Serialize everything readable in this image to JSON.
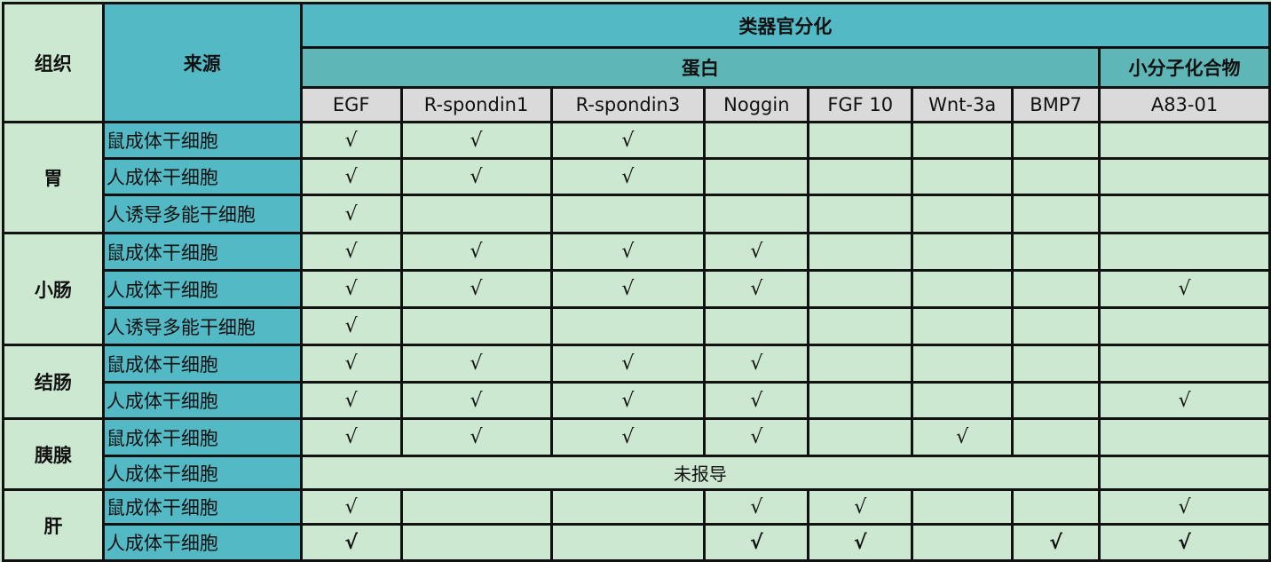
{
  "header": {
    "tissue": "组织",
    "source": "来源",
    "main": "类器官分化",
    "protein_group": "蛋白",
    "small_molecule_group": "小分子化合物",
    "columns": [
      "EGF",
      "R-spondin1",
      "R-spondin3",
      "Noggin",
      "FGF 10",
      "Wnt-3a",
      "BMP7",
      "A83-01"
    ]
  },
  "groups": [
    {
      "tissue": "胃",
      "rows": [
        {
          "source": "鼠成体干细胞",
          "cells": [
            "√",
            "√",
            "√",
            "",
            "",
            "",
            "",
            ""
          ]
        },
        {
          "source": "人成体干细胞",
          "cells": [
            "√",
            "√",
            "√",
            "",
            "",
            "",
            "",
            ""
          ]
        },
        {
          "source": "人诱导多能干细胞",
          "cells": [
            "√",
            "",
            "",
            "",
            "",
            "",
            "",
            ""
          ]
        }
      ]
    },
    {
      "tissue": "小肠",
      "rows": [
        {
          "source": "鼠成体干细胞",
          "cells": [
            "√",
            "√",
            "√",
            "√",
            "",
            "",
            "",
            ""
          ]
        },
        {
          "source": "人成体干细胞",
          "cells": [
            "√",
            "√",
            "√",
            "√",
            "",
            "",
            "",
            "√"
          ]
        },
        {
          "source": "人诱导多能干细胞",
          "cells": [
            "√",
            "",
            "",
            "",
            "",
            "",
            "",
            ""
          ]
        }
      ]
    },
    {
      "tissue": "结肠",
      "rows": [
        {
          "source": "鼠成体干细胞",
          "cells": [
            "√",
            "√",
            "√",
            "√",
            "",
            "",
            "",
            ""
          ]
        },
        {
          "source": "人成体干细胞",
          "cells": [
            "√",
            "√",
            "√",
            "√",
            "",
            "",
            "",
            "√"
          ]
        }
      ]
    },
    {
      "tissue": "胰腺",
      "rows": [
        {
          "source": "鼠成体干细胞",
          "cells": [
            "√",
            "√",
            "√",
            "√",
            "",
            "√",
            "",
            ""
          ]
        },
        {
          "source": "人成体干细胞",
          "not_reported": "未报导",
          "cells": [
            ""
          ]
        }
      ]
    },
    {
      "tissue": "肝",
      "rows": [
        {
          "source": "鼠成体干细胞",
          "cells": [
            "√",
            "",
            "",
            "√",
            "√",
            "",
            "",
            "√"
          ]
        },
        {
          "source": "人成体干细胞",
          "bold": true,
          "cells": [
            "√",
            "",
            "",
            "√",
            "√",
            "",
            "√",
            "√"
          ]
        }
      ]
    }
  ]
}
